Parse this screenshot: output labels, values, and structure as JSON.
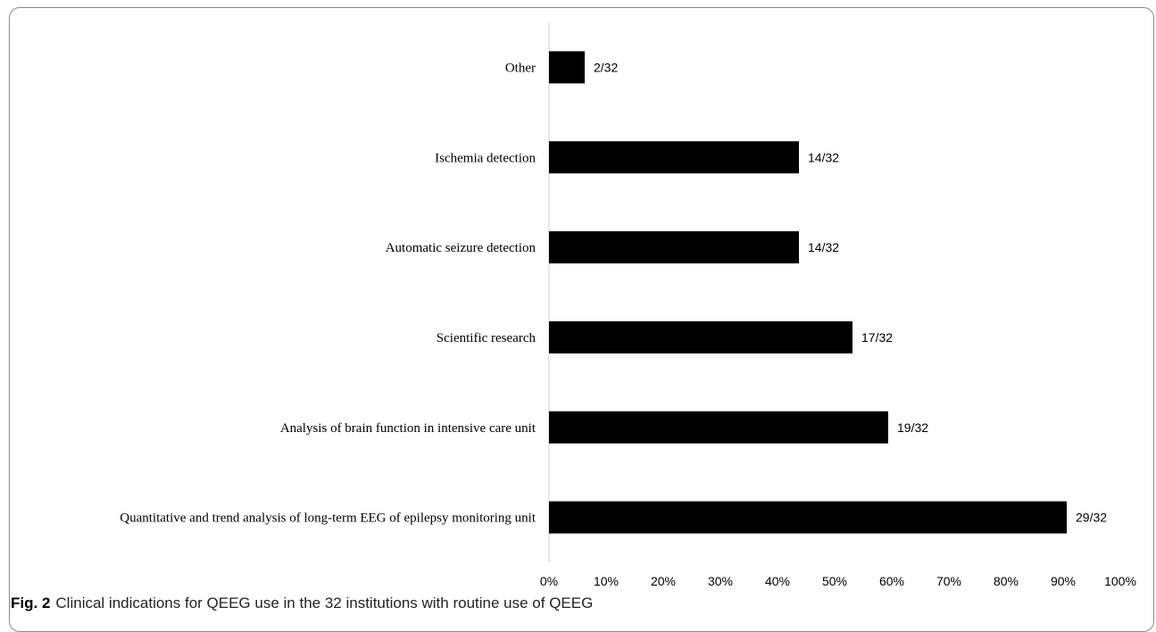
{
  "caption": {
    "label": "Fig. 2",
    "text": "Clinical indications for QEEG use in the 32 institutions with routine use of QEEG"
  },
  "chart_data": {
    "type": "bar",
    "orientation": "horizontal",
    "categories": [
      "Other",
      "Ischemia detection",
      "Automatic seizure detection",
      "Scientific research",
      "Analysis of brain function in intensive care unit",
      "Quantitative and trend analysis of long-term EEG of epilepsy monitoring unit"
    ],
    "values": [
      6.25,
      43.75,
      43.75,
      53.125,
      59.375,
      90.625
    ],
    "data_labels": [
      "2/32",
      "14/32",
      "14/32",
      "17/32",
      "19/32",
      "29/32"
    ],
    "xlim": [
      0,
      100
    ],
    "x_ticks": [
      "0%",
      "10%",
      "20%",
      "30%",
      "40%",
      "50%",
      "60%",
      "70%",
      "80%",
      "90%",
      "100%"
    ],
    "bar_color": "#000000",
    "grid": false
  }
}
